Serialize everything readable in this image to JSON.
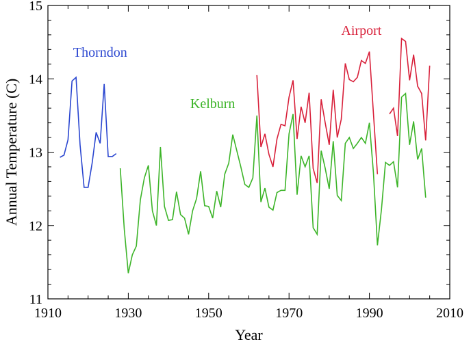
{
  "chart_data": {
    "type": "line",
    "title": "",
    "xlabel": "Year",
    "ylabel": "Annual Temperature (C)",
    "xlim": [
      1910,
      2010
    ],
    "ylim": [
      11,
      15
    ],
    "xticks": [
      1910,
      1930,
      1950,
      1970,
      1990,
      2010
    ],
    "yticks": [
      11,
      12,
      13,
      14,
      15
    ],
    "grid": false,
    "legend": "inline labels",
    "series": [
      {
        "name": "Thorndon",
        "color": "#2a46d0",
        "label_at": [
          1923,
          14.3
        ],
        "x": [
          1913,
          1914,
          1915,
          1916,
          1917,
          1918,
          1919,
          1920,
          1921,
          1922,
          1923,
          1924,
          1925,
          1926,
          1927
        ],
        "y": [
          12.93,
          12.96,
          13.17,
          13.97,
          14.02,
          13.1,
          12.52,
          12.52,
          12.85,
          13.27,
          13.12,
          13.93,
          12.94,
          12.94,
          12.98
        ]
      },
      {
        "name": "Kelburn",
        "color": "#3cb428",
        "label_at": [
          1951,
          13.6
        ],
        "x": [
          1928,
          1929,
          1930,
          1931,
          1932,
          1933,
          1934,
          1935,
          1936,
          1937,
          1938,
          1939,
          1940,
          1941,
          1942,
          1943,
          1944,
          1945,
          1946,
          1947,
          1948,
          1949,
          1950,
          1951,
          1952,
          1953,
          1954,
          1955,
          1956,
          1957,
          1958,
          1959,
          1960,
          1961,
          1962,
          1963,
          1964,
          1965,
          1966,
          1967,
          1968,
          1969,
          1970,
          1971,
          1972,
          1973,
          1974,
          1975,
          1976,
          1977,
          1978,
          1979,
          1980,
          1981,
          1982,
          1983,
          1984,
          1985,
          1986,
          1987,
          1988,
          1989,
          1990,
          1991,
          1992,
          1993,
          1994,
          1995,
          1996,
          1997,
          1998,
          1999,
          2000,
          2001,
          2002,
          2003,
          2004
        ],
        "y": [
          12.78,
          11.95,
          11.35,
          11.6,
          11.72,
          12.35,
          12.65,
          12.82,
          12.2,
          12.0,
          13.07,
          12.26,
          12.07,
          12.08,
          12.46,
          12.15,
          12.1,
          11.88,
          12.2,
          12.37,
          12.74,
          12.27,
          12.26,
          12.1,
          12.47,
          12.25,
          12.7,
          12.85,
          13.24,
          13.02,
          12.8,
          12.56,
          12.52,
          12.65,
          13.5,
          12.32,
          12.51,
          12.25,
          12.21,
          12.45,
          12.48,
          12.48,
          13.25,
          13.52,
          12.42,
          12.95,
          12.8,
          12.95,
          11.97,
          11.88,
          13.02,
          12.78,
          12.5,
          13.15,
          12.41,
          12.34,
          13.12,
          13.2,
          13.05,
          13.12,
          13.2,
          13.12,
          13.4,
          12.72,
          11.73,
          12.22,
          12.86,
          12.82,
          12.87,
          12.52,
          13.75,
          13.8,
          13.1,
          13.42,
          12.9,
          13.05,
          12.38
        ]
      },
      {
        "name": "Airport",
        "color": "#d8203a",
        "label_at": [
          1988,
          14.6
        ],
        "x": [
          1962,
          1963,
          1964,
          1965,
          1966,
          1967,
          1968,
          1969,
          1970,
          1971,
          1972,
          1973,
          1974,
          1975,
          1976,
          1977,
          1978,
          1979,
          1980,
          1981,
          1982,
          1983,
          1984,
          1985,
          1986,
          1987,
          1988,
          1989,
          1990,
          1991,
          1992,
          null,
          1995,
          1996,
          1997,
          1998,
          1999,
          2000,
          2001,
          2002,
          2003,
          2004,
          2005
        ],
        "y": [
          14.05,
          13.07,
          13.25,
          12.97,
          12.8,
          13.18,
          13.38,
          13.36,
          13.75,
          13.98,
          13.18,
          13.62,
          13.4,
          13.81,
          12.78,
          12.58,
          13.72,
          13.4,
          13.1,
          13.85,
          13.2,
          13.45,
          14.21,
          13.99,
          13.96,
          14.02,
          14.25,
          14.21,
          14.37,
          13.53,
          12.7,
          null,
          13.52,
          13.6,
          13.22,
          14.55,
          14.51,
          13.98,
          14.33,
          13.9,
          13.8,
          13.16,
          14.18
        ]
      }
    ]
  }
}
